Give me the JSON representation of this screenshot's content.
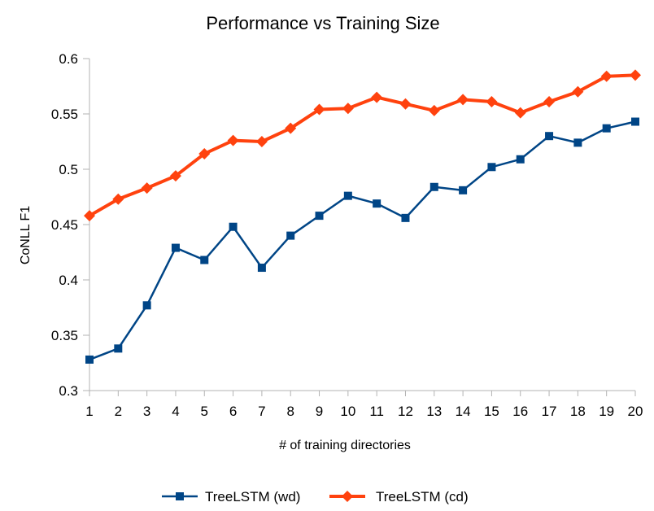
{
  "chart_data": {
    "type": "line",
    "title": "Performance vs Training Size",
    "xlabel": "# of training directories",
    "ylabel": "CoNLL F1",
    "categories": [
      1,
      2,
      3,
      4,
      5,
      6,
      7,
      8,
      9,
      10,
      11,
      12,
      13,
      14,
      15,
      16,
      17,
      18,
      19,
      20
    ],
    "ylim": [
      0.3,
      0.6
    ],
    "yticks": [
      0.3,
      0.35,
      0.4,
      0.45,
      0.5,
      0.55,
      0.6
    ],
    "ytick_labels": [
      "0.3",
      "0.35",
      "0.4",
      "0.45",
      "0.5",
      "0.55",
      "0.6"
    ],
    "grid": false,
    "legend_position": "bottom",
    "series": [
      {
        "name": "TreeLSTM (wd)",
        "color": "#004586",
        "marker": "square",
        "values": [
          0.328,
          0.338,
          0.377,
          0.429,
          0.418,
          0.448,
          0.411,
          0.44,
          0.458,
          0.476,
          0.469,
          0.456,
          0.484,
          0.481,
          0.502,
          0.509,
          0.53,
          0.524,
          0.537,
          0.543
        ]
      },
      {
        "name": "TreeLSTM (cd)",
        "color": "#ff420e",
        "marker": "diamond",
        "values": [
          0.458,
          0.473,
          0.483,
          0.494,
          0.514,
          0.526,
          0.525,
          0.537,
          0.554,
          0.555,
          0.565,
          0.559,
          0.553,
          0.563,
          0.561,
          0.551,
          0.561,
          0.57,
          0.584,
          0.585
        ]
      }
    ]
  }
}
